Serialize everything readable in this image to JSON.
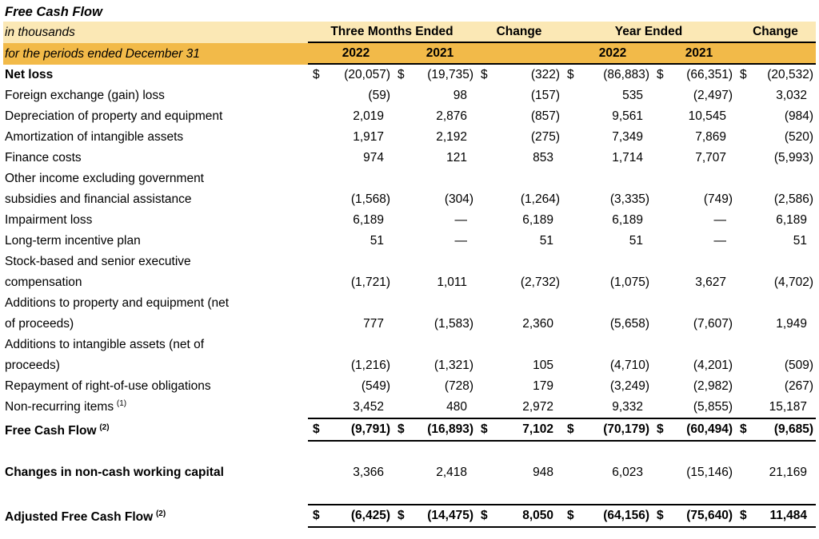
{
  "title": "Free Cash Flow",
  "currency_symbol": "$",
  "colors": {
    "band_light": "#FBE8B5",
    "band_gold": "#F2BA49",
    "border": "#000000"
  },
  "header": {
    "subtitle_line1": "in thousands",
    "subtitle_line2": "for the periods ended December 31",
    "group_three_months": "Three Months Ended",
    "group_year": "Year Ended",
    "change_label_1": "Change",
    "change_label_2": "Change",
    "year_cols": [
      "2022",
      "2021",
      "2022",
      "2021"
    ]
  },
  "rows": [
    {
      "label": "Net loss",
      "sup": "",
      "label_bold": true,
      "values_bold": false,
      "dollar": true,
      "total": false,
      "gap_before": false,
      "values": [
        "(20,057)",
        "(19,735)",
        "(322)",
        "(86,883)",
        "(66,351)",
        "(20,532)"
      ]
    },
    {
      "label": "Foreign exchange (gain) loss",
      "sup": "",
      "label_bold": false,
      "values_bold": false,
      "dollar": false,
      "total": false,
      "gap_before": false,
      "values": [
        "(59)",
        "98",
        "(157)",
        "535",
        "(2,497)",
        "3,032"
      ]
    },
    {
      "label": "Depreciation of property and equipment",
      "sup": "",
      "label_bold": false,
      "values_bold": false,
      "dollar": false,
      "total": false,
      "gap_before": false,
      "values": [
        "2,019",
        "2,876",
        "(857)",
        "9,561",
        "10,545",
        "(984)"
      ]
    },
    {
      "label": "Amortization of intangible assets",
      "sup": "",
      "label_bold": false,
      "values_bold": false,
      "dollar": false,
      "total": false,
      "gap_before": false,
      "values": [
        "1,917",
        "2,192",
        "(275)",
        "7,349",
        "7,869",
        "(520)"
      ]
    },
    {
      "label": "Finance costs",
      "sup": "",
      "label_bold": false,
      "values_bold": false,
      "dollar": false,
      "total": false,
      "gap_before": false,
      "values": [
        "974",
        "121",
        "853",
        "1,714",
        "7,707",
        "(5,993)"
      ]
    },
    {
      "label": "Other income excluding government\nsubsidies and financial assistance",
      "sup": "",
      "label_bold": false,
      "values_bold": false,
      "dollar": false,
      "total": false,
      "gap_before": false,
      "values": [
        "(1,568)",
        "(304)",
        "(1,264)",
        "(3,335)",
        "(749)",
        "(2,586)"
      ]
    },
    {
      "label": "Impairment loss",
      "sup": "",
      "label_bold": false,
      "values_bold": false,
      "dollar": false,
      "total": false,
      "gap_before": false,
      "values": [
        "6,189",
        "—",
        "6,189",
        "6,189",
        "—",
        "6,189"
      ]
    },
    {
      "label": "Long-term incentive plan",
      "sup": "",
      "label_bold": false,
      "values_bold": false,
      "dollar": false,
      "total": false,
      "gap_before": false,
      "values": [
        "51",
        "—",
        "51",
        "51",
        "—",
        "51"
      ]
    },
    {
      "label": "Stock-based and senior executive\ncompensation",
      "sup": "",
      "label_bold": false,
      "values_bold": false,
      "dollar": false,
      "total": false,
      "gap_before": false,
      "values": [
        "(1,721)",
        "1,011",
        "(2,732)",
        "(1,075)",
        "3,627",
        "(4,702)"
      ]
    },
    {
      "label": "Additions to property and equipment (net\nof proceeds)",
      "sup": "",
      "label_bold": false,
      "values_bold": false,
      "dollar": false,
      "total": false,
      "gap_before": false,
      "values": [
        "777",
        "(1,583)",
        "2,360",
        "(5,658)",
        "(7,607)",
        "1,949"
      ]
    },
    {
      "label": "Additions to intangible assets (net of\nproceeds)",
      "sup": "",
      "label_bold": false,
      "values_bold": false,
      "dollar": false,
      "total": false,
      "gap_before": false,
      "values": [
        "(1,216)",
        "(1,321)",
        "105",
        "(4,710)",
        "(4,201)",
        "(509)"
      ]
    },
    {
      "label": "Repayment of right-of-use obligations",
      "sup": "",
      "label_bold": false,
      "values_bold": false,
      "dollar": false,
      "total": false,
      "gap_before": false,
      "values": [
        "(549)",
        "(728)",
        "179",
        "(3,249)",
        "(2,982)",
        "(267)"
      ]
    },
    {
      "label": "Non-recurring items",
      "sup": "(1)",
      "label_bold": false,
      "values_bold": false,
      "dollar": false,
      "total": false,
      "gap_before": false,
      "values": [
        "3,452",
        "480",
        "2,972",
        "9,332",
        "(5,855)",
        "15,187"
      ]
    },
    {
      "label": "Free Cash Flow",
      "sup": "(2)",
      "label_bold": true,
      "values_bold": true,
      "dollar": true,
      "total": true,
      "gap_before": false,
      "values": [
        "(9,791)",
        "(16,893)",
        "7,102",
        "(70,179)",
        "(60,494)",
        "(9,685)"
      ]
    },
    {
      "label": "Changes in non-cash working capital",
      "sup": "",
      "label_bold": true,
      "values_bold": false,
      "dollar": false,
      "total": false,
      "gap_before": true,
      "values": [
        "3,366",
        "2,418",
        "948",
        "6,023",
        "(15,146)",
        "21,169"
      ]
    },
    {
      "label": "Adjusted Free Cash Flow",
      "sup": "(2)",
      "label_bold": true,
      "values_bold": true,
      "dollar": true,
      "total": true,
      "gap_before": true,
      "values": [
        "(6,425)",
        "(14,475)",
        "8,050",
        "(64,156)",
        "(75,640)",
        "11,484"
      ]
    }
  ]
}
